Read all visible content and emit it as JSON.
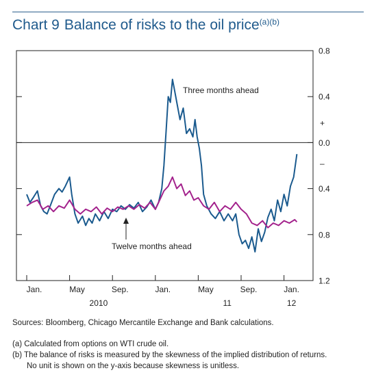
{
  "header": {
    "number": "Chart 9",
    "title": "Balance of risks to the oil price",
    "superscript": "(a)(b)"
  },
  "footer": {
    "sources": "Sources: Bloomberg, Chicago Mercantile Exchange and Bank calculations.",
    "note_a": "(a) Calculated from options on WTI crude oil.",
    "note_b1": "(b) The balance of risks is measured by the skewness of the implied distribution of returns.",
    "note_b2": "No unit is shown on the y-axis because skewness is unitless."
  },
  "chart_data": {
    "type": "line",
    "y_axis": {
      "ticks": [
        0.8,
        0.4,
        0.0,
        -0.4,
        -0.8,
        -1.2
      ],
      "tick_labels": [
        "0.8",
        "0.4",
        "0.0",
        "0.4",
        "0.8",
        "1.2"
      ],
      "plus_label": "+",
      "minus_label": "–",
      "ylim": [
        -1.2,
        0.8
      ],
      "position": "right"
    },
    "x_axis": {
      "month_labels": [
        {
          "t": 0,
          "label": "Jan."
        },
        {
          "t": 4,
          "label": "May"
        },
        {
          "t": 8,
          "label": "Sep."
        },
        {
          "t": 12,
          "label": "Jan."
        },
        {
          "t": 16,
          "label": "May"
        },
        {
          "t": 20,
          "label": "Sep."
        },
        {
          "t": 24,
          "label": "Jan."
        }
      ],
      "year_labels": [
        {
          "t": 6,
          "label": "2010"
        },
        {
          "t": 18,
          "label": "11"
        },
        {
          "t": 24,
          "label": "12"
        }
      ],
      "xlim": [
        -0.5,
        26.5
      ]
    },
    "zero_line": 0.0,
    "series": [
      {
        "name": "Three months ahead",
        "color": "#1a5a8e",
        "points": [
          [
            0.0,
            -0.45
          ],
          [
            0.3,
            -0.52
          ],
          [
            0.6,
            -0.48
          ],
          [
            1.0,
            -0.42
          ],
          [
            1.3,
            -0.55
          ],
          [
            1.6,
            -0.6
          ],
          [
            1.9,
            -0.62
          ],
          [
            2.2,
            -0.55
          ],
          [
            2.6,
            -0.45
          ],
          [
            3.0,
            -0.4
          ],
          [
            3.3,
            -0.43
          ],
          [
            3.6,
            -0.38
          ],
          [
            4.0,
            -0.3
          ],
          [
            4.2,
            -0.45
          ],
          [
            4.5,
            -0.62
          ],
          [
            4.8,
            -0.7
          ],
          [
            5.2,
            -0.64
          ],
          [
            5.5,
            -0.72
          ],
          [
            5.8,
            -0.66
          ],
          [
            6.1,
            -0.7
          ],
          [
            6.4,
            -0.62
          ],
          [
            6.8,
            -0.68
          ],
          [
            7.2,
            -0.6
          ],
          [
            7.6,
            -0.66
          ],
          [
            8.0,
            -0.58
          ],
          [
            8.4,
            -0.6
          ],
          [
            8.8,
            -0.55
          ],
          [
            9.2,
            -0.58
          ],
          [
            9.6,
            -0.54
          ],
          [
            10.0,
            -0.57
          ],
          [
            10.4,
            -0.52
          ],
          [
            10.8,
            -0.6
          ],
          [
            11.2,
            -0.56
          ],
          [
            11.6,
            -0.5
          ],
          [
            12.0,
            -0.58
          ],
          [
            12.3,
            -0.52
          ],
          [
            12.6,
            -0.4
          ],
          [
            12.8,
            -0.2
          ],
          [
            13.0,
            0.1
          ],
          [
            13.2,
            0.4
          ],
          [
            13.4,
            0.35
          ],
          [
            13.6,
            0.55
          ],
          [
            13.8,
            0.45
          ],
          [
            14.0,
            0.35
          ],
          [
            14.3,
            0.2
          ],
          [
            14.6,
            0.3
          ],
          [
            14.9,
            0.08
          ],
          [
            15.2,
            0.12
          ],
          [
            15.5,
            0.05
          ],
          [
            15.7,
            0.2
          ],
          [
            15.9,
            0.05
          ],
          [
            16.1,
            -0.05
          ],
          [
            16.3,
            -0.2
          ],
          [
            16.5,
            -0.45
          ],
          [
            16.8,
            -0.55
          ],
          [
            17.2,
            -0.62
          ],
          [
            17.6,
            -0.66
          ],
          [
            18.0,
            -0.6
          ],
          [
            18.4,
            -0.68
          ],
          [
            18.8,
            -0.62
          ],
          [
            19.2,
            -0.68
          ],
          [
            19.5,
            -0.62
          ],
          [
            19.8,
            -0.8
          ],
          [
            20.1,
            -0.88
          ],
          [
            20.4,
            -0.85
          ],
          [
            20.7,
            -0.92
          ],
          [
            21.0,
            -0.82
          ],
          [
            21.3,
            -0.95
          ],
          [
            21.6,
            -0.75
          ],
          [
            21.9,
            -0.86
          ],
          [
            22.2,
            -0.78
          ],
          [
            22.5,
            -0.65
          ],
          [
            22.8,
            -0.58
          ],
          [
            23.1,
            -0.68
          ],
          [
            23.4,
            -0.5
          ],
          [
            23.7,
            -0.6
          ],
          [
            24.0,
            -0.45
          ],
          [
            24.3,
            -0.55
          ],
          [
            24.6,
            -0.38
          ],
          [
            24.9,
            -0.3
          ],
          [
            25.2,
            -0.1
          ]
        ]
      },
      {
        "name": "Twelve months ahead",
        "color": "#a3228c",
        "points": [
          [
            0.0,
            -0.55
          ],
          [
            0.5,
            -0.52
          ],
          [
            1.0,
            -0.5
          ],
          [
            1.5,
            -0.58
          ],
          [
            2.0,
            -0.55
          ],
          [
            2.5,
            -0.6
          ],
          [
            3.0,
            -0.55
          ],
          [
            3.5,
            -0.57
          ],
          [
            4.0,
            -0.5
          ],
          [
            4.5,
            -0.58
          ],
          [
            5.0,
            -0.62
          ],
          [
            5.5,
            -0.58
          ],
          [
            6.0,
            -0.6
          ],
          [
            6.5,
            -0.56
          ],
          [
            7.0,
            -0.62
          ],
          [
            7.5,
            -0.57
          ],
          [
            8.0,
            -0.6
          ],
          [
            8.5,
            -0.56
          ],
          [
            9.0,
            -0.58
          ],
          [
            9.5,
            -0.55
          ],
          [
            10.0,
            -0.58
          ],
          [
            10.5,
            -0.54
          ],
          [
            11.0,
            -0.57
          ],
          [
            11.5,
            -0.52
          ],
          [
            12.0,
            -0.58
          ],
          [
            12.4,
            -0.5
          ],
          [
            12.8,
            -0.42
          ],
          [
            13.2,
            -0.38
          ],
          [
            13.6,
            -0.3
          ],
          [
            14.0,
            -0.4
          ],
          [
            14.4,
            -0.36
          ],
          [
            14.8,
            -0.46
          ],
          [
            15.2,
            -0.42
          ],
          [
            15.6,
            -0.5
          ],
          [
            16.0,
            -0.48
          ],
          [
            16.5,
            -0.55
          ],
          [
            17.0,
            -0.58
          ],
          [
            17.5,
            -0.52
          ],
          [
            18.0,
            -0.6
          ],
          [
            18.5,
            -0.55
          ],
          [
            19.0,
            -0.58
          ],
          [
            19.5,
            -0.52
          ],
          [
            20.0,
            -0.58
          ],
          [
            20.5,
            -0.62
          ],
          [
            21.0,
            -0.7
          ],
          [
            21.5,
            -0.72
          ],
          [
            22.0,
            -0.68
          ],
          [
            22.5,
            -0.74
          ],
          [
            23.0,
            -0.7
          ],
          [
            23.5,
            -0.72
          ],
          [
            24.0,
            -0.68
          ],
          [
            24.5,
            -0.7
          ],
          [
            25.0,
            -0.67
          ],
          [
            25.2,
            -0.69
          ]
        ]
      }
    ],
    "annotations": [
      {
        "text": "Three months ahead",
        "series": 0
      },
      {
        "text": "Twelve months ahead",
        "series": 1
      }
    ],
    "grid": false,
    "legend": "none"
  }
}
